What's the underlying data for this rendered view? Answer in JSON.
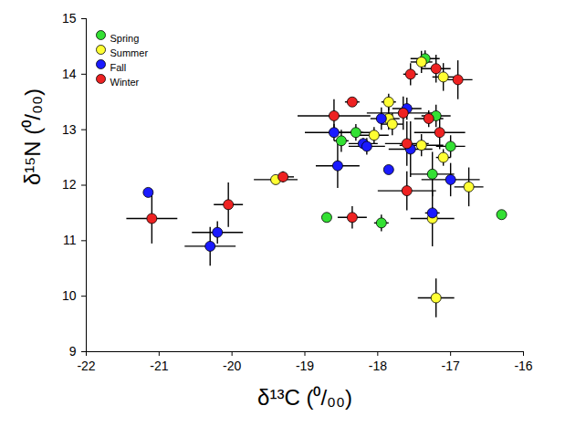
{
  "chart_data": {
    "type": "scatter",
    "x_label": "δ¹³C (⁰/₀₀)",
    "y_label": "δ¹⁵N (⁰/₀₀)",
    "xlim": [
      -22,
      -16
    ],
    "xticks": [
      -22,
      -21,
      -20,
      -19,
      -18,
      -17,
      -16
    ],
    "ylim": [
      9,
      15
    ],
    "yticks": [
      9,
      10,
      11,
      12,
      13,
      14,
      15
    ],
    "legend": "top-left",
    "marker": "circle",
    "series": [
      {
        "name": "Spring",
        "color": "#33e033",
        "x": [
          -18.7,
          -18.5,
          -18.3,
          -17.95,
          -17.35,
          -17.2,
          -17.25,
          -17.0,
          -16.3
        ],
        "y": [
          11.42,
          12.8,
          12.95,
          11.32,
          14.28,
          13.25,
          12.2,
          12.7,
          11.47
        ],
        "x_err": [
          0,
          0.1,
          0.25,
          0.1,
          0.2,
          0.2,
          0.3,
          0.2,
          0
        ],
        "y_err": [
          0,
          0.2,
          0.15,
          0.15,
          0.15,
          0.2,
          0.4,
          0.2,
          0
        ]
      },
      {
        "name": "Summer",
        "color": "#ffff33",
        "x": [
          -19.4,
          -18.05,
          -17.85,
          -17.85,
          -17.8,
          -17.4,
          -17.4,
          -17.25,
          -17.2,
          -17.1,
          -17.1,
          -16.75
        ],
        "y": [
          12.1,
          12.9,
          13.5,
          13.2,
          13.1,
          14.22,
          12.72,
          11.4,
          9.97,
          13.95,
          12.5,
          11.97
        ],
        "x_err": [
          0.3,
          0.2,
          0.1,
          0.15,
          0.15,
          0.15,
          0.3,
          0.3,
          0.25,
          0.15,
          0.1,
          0.2
        ],
        "y_err": [
          0.05,
          0.15,
          0.15,
          0.2,
          0.2,
          0.2,
          0.2,
          0.5,
          0.35,
          0.25,
          0.15,
          0.35
        ]
      },
      {
        "name": "Fall",
        "color": "#1a1aff",
        "x": [
          -21.15,
          -20.3,
          -20.2,
          -18.6,
          -18.55,
          -18.2,
          -18.15,
          -17.95,
          -17.85,
          -17.6,
          -17.55,
          -17.25,
          -17.0
        ],
        "y": [
          11.87,
          10.9,
          11.15,
          12.95,
          12.35,
          12.75,
          12.7,
          13.2,
          12.28,
          13.38,
          12.65,
          11.5,
          12.1
        ],
        "x_err": [
          0,
          0.35,
          0.35,
          0.4,
          0.3,
          0.2,
          0.25,
          0.15,
          0,
          0.2,
          0.3,
          0.1,
          0.4
        ],
        "y_err": [
          0,
          0.35,
          0.2,
          0.15,
          0.4,
          0.1,
          0.15,
          0.2,
          0,
          0.2,
          0.5,
          0.1,
          0.3
        ]
      },
      {
        "name": "Winter",
        "color": "#ee2222",
        "x": [
          -21.1,
          -20.05,
          -19.3,
          -18.6,
          -18.35,
          -18.35,
          -17.6,
          -17.65,
          -17.55,
          -17.2,
          -17.3,
          -17.15,
          -16.9,
          -17.6
        ],
        "y": [
          11.4,
          11.65,
          12.15,
          13.25,
          13.5,
          11.42,
          11.9,
          13.3,
          14.0,
          14.1,
          13.2,
          12.95,
          13.9,
          12.75
        ],
        "x_err": [
          0.35,
          0.2,
          0.15,
          0.5,
          0.1,
          0.2,
          0.4,
          0.5,
          0.1,
          0.2,
          0.2,
          0.35,
          0.2,
          0.3
        ],
        "y_err": [
          0.45,
          0.4,
          0.1,
          0.3,
          0.05,
          0.2,
          0.35,
          0.3,
          0.2,
          0.25,
          0.15,
          0.3,
          0.35,
          0.4
        ]
      }
    ]
  }
}
